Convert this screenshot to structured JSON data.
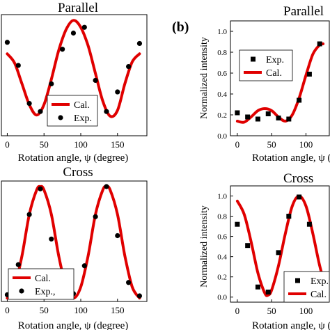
{
  "chart_data": [
    {
      "type": "line",
      "title": "Parallel",
      "xlabel": "Rotation angle, ψ (degree)",
      "ylabel": "",
      "xlim": [
        -8,
        190
      ],
      "ylim": [
        0.0,
        1.05
      ],
      "xticks": [
        0,
        50,
        100,
        150
      ],
      "yticks": [],
      "legend": [
        "Cal.",
        "Exp."
      ],
      "legend_order": [
        "cal",
        "exp"
      ],
      "legend_position": "bottom-center",
      "series": [
        {
          "name": "Cal.",
          "kind": "line",
          "color": "#e00000",
          "x": [
            0,
            10,
            20,
            30,
            40,
            50,
            60,
            70,
            80,
            90,
            100,
            110,
            120,
            130,
            140,
            150,
            160,
            170,
            180
          ],
          "y": [
            0.71,
            0.63,
            0.45,
            0.27,
            0.18,
            0.27,
            0.49,
            0.74,
            0.92,
            1.0,
            0.94,
            0.78,
            0.54,
            0.3,
            0.17,
            0.22,
            0.45,
            0.64,
            0.71
          ]
        },
        {
          "name": "Exp.",
          "kind": "scatter",
          "marker": "circle",
          "color": "#000000",
          "x": [
            0,
            15,
            30,
            45,
            60,
            75,
            90,
            105,
            120,
            135,
            150,
            165,
            180
          ],
          "y": [
            0.81,
            0.61,
            0.28,
            0.21,
            0.45,
            0.75,
            0.89,
            0.94,
            0.48,
            0.21,
            0.38,
            0.6,
            0.8
          ]
        }
      ]
    },
    {
      "type": "line",
      "title": "Parallel",
      "panel_label": "(b)",
      "xlabel": "Rotation angle, ψ (degree)",
      "ylabel": "Normalized intensity",
      "xlim": [
        -10,
        135
      ],
      "ylim": [
        0.0,
        1.1
      ],
      "xticks": [
        0,
        50,
        100
      ],
      "yticks": [
        0.0,
        0.2,
        0.4,
        0.6,
        0.8,
        1.0
      ],
      "legend": [
        "Exp.",
        "Cal."
      ],
      "legend_order": [
        "exp",
        "cal"
      ],
      "legend_position": "upper-left",
      "series": [
        {
          "name": "Exp.",
          "kind": "scatter",
          "marker": "square",
          "color": "#000000",
          "x": [
            0,
            15,
            30,
            45,
            60,
            75,
            90,
            105,
            120
          ],
          "y": [
            0.22,
            0.18,
            0.16,
            0.21,
            0.17,
            0.16,
            0.34,
            0.59,
            0.88
          ]
        },
        {
          "name": "Cal.",
          "kind": "line",
          "color": "#e00000",
          "x": [
            0,
            10,
            20,
            30,
            40,
            50,
            60,
            70,
            80,
            90,
            100,
            110,
            120,
            125
          ],
          "y": [
            0.14,
            0.13,
            0.18,
            0.24,
            0.26,
            0.24,
            0.18,
            0.14,
            0.2,
            0.36,
            0.58,
            0.78,
            0.87,
            0.88
          ]
        }
      ]
    },
    {
      "type": "line",
      "title": "Cross",
      "xlabel": "Rotation angle, ψ (degree)",
      "ylabel": "",
      "xlim": [
        -8,
        190
      ],
      "ylim": [
        -0.03,
        1.05
      ],
      "xticks": [
        0,
        50,
        100,
        150
      ],
      "yticks": [],
      "legend": [
        "Cal.",
        "Exp.,"
      ],
      "legend_order": [
        "cal",
        "exp"
      ],
      "legend_position": "lower-left",
      "series": [
        {
          "name": "Cal.",
          "kind": "line",
          "color": "#e00000",
          "x": [
            0,
            10,
            20,
            30,
            40,
            45,
            50,
            60,
            70,
            80,
            90,
            100,
            110,
            120,
            130,
            135,
            140,
            150,
            160,
            170,
            180
          ],
          "y": [
            0.0,
            0.1,
            0.38,
            0.75,
            0.97,
            1.0,
            0.97,
            0.75,
            0.38,
            0.1,
            0.0,
            0.1,
            0.38,
            0.75,
            0.97,
            1.0,
            0.97,
            0.75,
            0.38,
            0.1,
            0.0
          ]
        },
        {
          "name": "Exp.,",
          "kind": "scatter",
          "marker": "circle",
          "color": "#000000",
          "x": [
            0,
            15,
            30,
            45,
            60,
            75,
            90,
            105,
            120,
            135,
            150,
            165,
            180
          ],
          "y": [
            0.03,
            0.3,
            0.75,
            0.98,
            0.53,
            0.13,
            0.04,
            0.29,
            0.73,
            1.0,
            0.56,
            0.14,
            0.02
          ]
        }
      ]
    },
    {
      "type": "line",
      "title": "Cross",
      "xlabel": "Rotation angle, ψ (degree)",
      "ylabel": "Normalized intensity",
      "xlim": [
        -10,
        135
      ],
      "ylim": [
        -0.05,
        1.1
      ],
      "xticks": [
        0,
        50,
        100
      ],
      "yticks": [
        0.0,
        0.2,
        0.4,
        0.6,
        0.8,
        1.0
      ],
      "legend": [
        "Exp.",
        "Cal."
      ],
      "legend_order": [
        "exp",
        "cal"
      ],
      "legend_position": "lower-right",
      "series": [
        {
          "name": "Exp.",
          "kind": "scatter",
          "marker": "square",
          "color": "#000000",
          "x": [
            0,
            15,
            30,
            45,
            60,
            75,
            90,
            105
          ],
          "y": [
            0.72,
            0.51,
            0.1,
            0.05,
            0.44,
            0.8,
            0.99,
            0.72
          ]
        },
        {
          "name": "Cal.",
          "kind": "line",
          "color": "#e00000",
          "x": [
            0,
            10,
            20,
            30,
            40,
            45,
            50,
            60,
            70,
            80,
            90,
            100,
            110,
            120,
            130
          ],
          "y": [
            0.95,
            0.82,
            0.55,
            0.24,
            0.04,
            0.02,
            0.07,
            0.31,
            0.63,
            0.9,
            1.0,
            0.9,
            0.63,
            0.31,
            0.07
          ]
        }
      ]
    }
  ]
}
